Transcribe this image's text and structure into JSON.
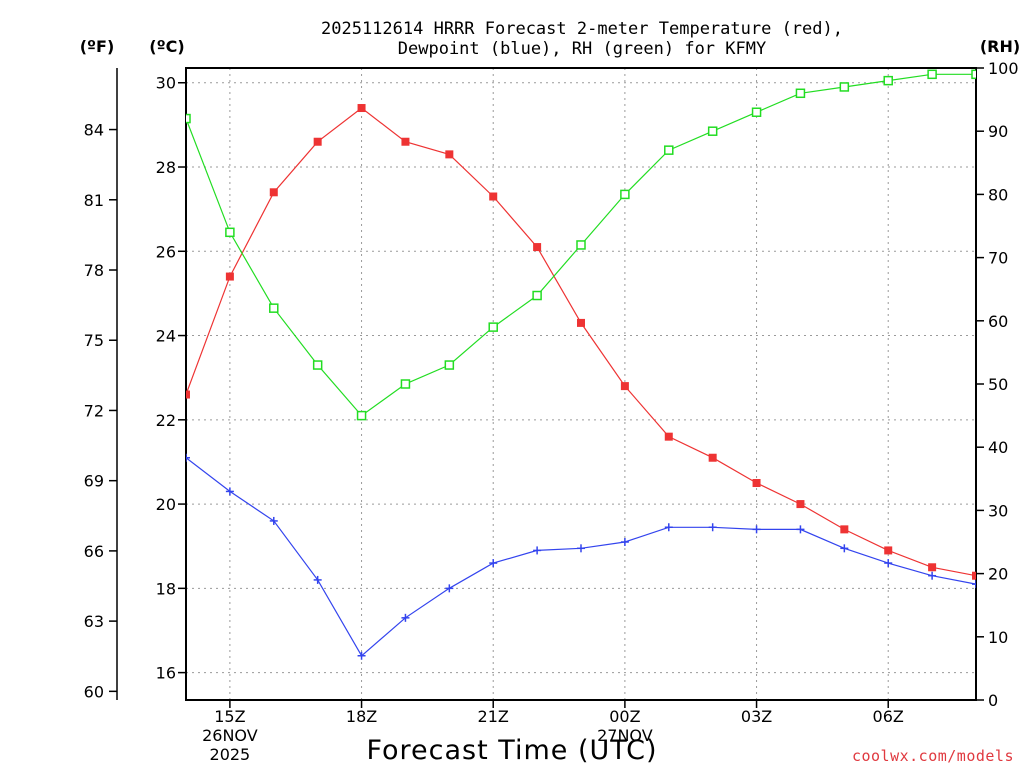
{
  "chart_data": {
    "type": "line",
    "title_line1": "2025112614 HRRR Forecast 2-meter Temperature (red),",
    "title_line2": "Dewpoint (blue), RH (green) for KFMY",
    "xlabel": "Forecast Time (UTC)",
    "credit": "coolwx.com/models",
    "units": {
      "fahrenheit": "(ºF)",
      "celsius": "(ºC)",
      "rh": "(RH)"
    },
    "x_hours": [
      14,
      15,
      16,
      17,
      18,
      19,
      20,
      21,
      22,
      23,
      24,
      25,
      26,
      27,
      28,
      29,
      30,
      31,
      32
    ],
    "xlim": [
      14,
      32
    ],
    "x_ticks": [
      {
        "hour": 15,
        "lines": [
          "15Z",
          "26NOV",
          "2025"
        ]
      },
      {
        "hour": 18,
        "lines": [
          "18Z"
        ]
      },
      {
        "hour": 21,
        "lines": [
          "21Z"
        ]
      },
      {
        "hour": 24,
        "lines": [
          "00Z",
          "27NOV"
        ]
      },
      {
        "hour": 27,
        "lines": [
          "03Z"
        ]
      },
      {
        "hour": 30,
        "lines": [
          "06Z"
        ]
      }
    ],
    "celsius_axis": {
      "ylim": [
        15.35,
        30.35
      ],
      "ticks": [
        16,
        18,
        20,
        22,
        24,
        26,
        28,
        30
      ],
      "tick_labels": [
        "16",
        "18",
        "20",
        "22",
        "24",
        "26",
        "28",
        "30"
      ]
    },
    "fahrenheit_axis": {
      "ticks": [
        60,
        63,
        66,
        69,
        72,
        75,
        78,
        81,
        84
      ],
      "tick_labels": [
        "60",
        "63",
        "66",
        "69",
        "72",
        "75",
        "78",
        "81",
        "84"
      ]
    },
    "rh_axis": {
      "ylim": [
        0,
        100
      ],
      "ticks": [
        0,
        10,
        20,
        30,
        40,
        50,
        60,
        70,
        80,
        90,
        100
      ],
      "tick_labels": [
        "0",
        "10",
        "20",
        "30",
        "40",
        "50",
        "60",
        "70",
        "80",
        "90",
        "100"
      ]
    },
    "series": [
      {
        "name": "Temperature",
        "axis": "celsius",
        "color": "#ee3333",
        "marker": "filled-square",
        "values": [
          22.6,
          25.4,
          27.4,
          28.6,
          29.4,
          28.6,
          28.3,
          27.3,
          26.1,
          24.3,
          22.8,
          21.6,
          21.1,
          20.5,
          20.0,
          19.4,
          18.9,
          18.5,
          18.3
        ]
      },
      {
        "name": "Dewpoint",
        "axis": "celsius",
        "color": "#3344ee",
        "marker": "plus",
        "values": [
          21.1,
          20.3,
          19.6,
          18.2,
          16.4,
          17.3,
          18.0,
          18.6,
          18.9,
          18.95,
          19.1,
          19.45,
          19.45,
          19.4,
          19.4,
          18.95,
          18.6,
          18.3,
          18.1
        ]
      },
      {
        "name": "RH",
        "axis": "rh",
        "color": "#22dd22",
        "marker": "hollow-square",
        "values": [
          92,
          74,
          62,
          53,
          45,
          50,
          53,
          59,
          64,
          72,
          80,
          87,
          90,
          93,
          96,
          97,
          98,
          99,
          99
        ]
      }
    ]
  }
}
